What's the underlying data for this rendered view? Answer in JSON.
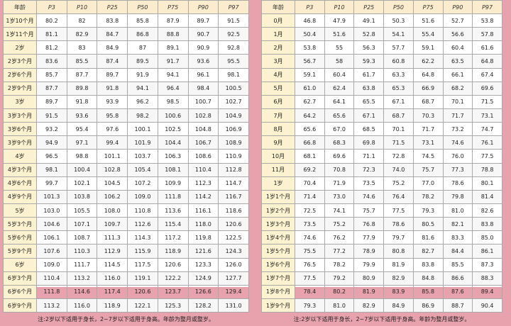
{
  "left_table": {
    "headers": [
      "年龄",
      "P3",
      "P10",
      "P25",
      "P50",
      "P75",
      "P90",
      "P97"
    ],
    "rows": [
      [
        "1岁10个月",
        "80.2",
        "82",
        "83.8",
        "85.8",
        "87.9",
        "89.7",
        "91.5"
      ],
      [
        "1岁11个月",
        "81.1",
        "82.9",
        "84.7",
        "86.8",
        "88.8",
        "90.7",
        "92.5"
      ],
      [
        "2岁",
        "81.2",
        "83",
        "84.9",
        "87",
        "89.1",
        "90.9",
        "92.8"
      ],
      [
        "2岁3个月",
        "83.6",
        "85.5",
        "87.4",
        "89.5",
        "91.7",
        "93.6",
        "95.5"
      ],
      [
        "2岁6个月",
        "85.7",
        "87.7",
        "89.7",
        "91.9",
        "94.1",
        "96.1",
        "98.1"
      ],
      [
        "2岁9个月",
        "87.7",
        "89.8",
        "91.8",
        "94.1",
        "96.4",
        "98.4",
        "100.5"
      ],
      [
        "3岁",
        "89.7",
        "91.8",
        "93.9",
        "96.2",
        "98.5",
        "100.7",
        "102.7"
      ],
      [
        "3岁3个月",
        "91.5",
        "93.6",
        "95.8",
        "98.2",
        "100.6",
        "102.8",
        "104.9"
      ],
      [
        "3岁6个月",
        "93.2",
        "95.4",
        "97.6",
        "100.1",
        "102.5",
        "104.8",
        "106.9"
      ],
      [
        "3岁9个月",
        "94.9",
        "97.1",
        "99.4",
        "101.9",
        "104.4",
        "106.7",
        "108.9"
      ],
      [
        "4岁",
        "96.5",
        "98.8",
        "101.1",
        "103.7",
        "106.3",
        "108.6",
        "110.9"
      ],
      [
        "4岁3个月",
        "98.1",
        "100.4",
        "102.8",
        "105.4",
        "108.1",
        "110.4",
        "112.8"
      ],
      [
        "4岁6个月",
        "99.7",
        "102.1",
        "104.5",
        "107.2",
        "109.9",
        "112.3",
        "114.7"
      ],
      [
        "4岁9个月",
        "101.3",
        "103.8",
        "106.2",
        "109.0",
        "111.8",
        "114.2",
        "116.7"
      ],
      [
        "5岁",
        "103.0",
        "105.5",
        "108.0",
        "110.8",
        "113.6",
        "116.1",
        "118.6"
      ],
      [
        "5岁3个月",
        "104.6",
        "107.1",
        "109.7",
        "112.6",
        "115.4",
        "118.0",
        "120.6"
      ],
      [
        "5岁6个月",
        "106.1",
        "108.7",
        "111.3",
        "114.3",
        "117.2",
        "119.8",
        "122.5"
      ],
      [
        "5岁9个月",
        "107.6",
        "110.3",
        "112.9",
        "115.9",
        "118.9",
        "121.6",
        "124.3"
      ],
      [
        "6岁",
        "109.0",
        "111.7",
        "114.5",
        "117.5",
        "120.6",
        "123.3",
        "126.0"
      ],
      [
        "6岁3个月",
        "110.4",
        "113.2",
        "116.0",
        "119.1",
        "122.2",
        "124.9",
        "127.7"
      ],
      [
        "6岁6个月",
        "111.8",
        "114.6",
        "117.4",
        "120.6",
        "123.7",
        "126.6",
        "129.4"
      ],
      [
        "6岁9个月",
        "113.2",
        "116.0",
        "118.9",
        "122.1",
        "125.3",
        "128.2",
        "131.0"
      ]
    ],
    "note": "注:2岁以下适用于身长，2~7岁以下适用于身高。年龄为整月或整岁。"
  },
  "right_table": {
    "headers": [
      "年龄",
      "P3",
      "P10",
      "P25",
      "P50",
      "P75",
      "P90",
      "P97"
    ],
    "rows": [
      [
        "0月",
        "46.8",
        "47.9",
        "49.1",
        "50.3",
        "51.6",
        "52.7",
        "53.8"
      ],
      [
        "1月",
        "50.4",
        "51.6",
        "52.8",
        "54.1",
        "55.4",
        "56.6",
        "57.8"
      ],
      [
        "2月",
        "53.8",
        "55",
        "56.3",
        "57.7",
        "59.1",
        "60.4",
        "61.6"
      ],
      [
        "3月",
        "56.7",
        "58",
        "59.3",
        "60.8",
        "62.2",
        "63.5",
        "64.8"
      ],
      [
        "4月",
        "59.1",
        "60.4",
        "61.7",
        "63.3",
        "64.8",
        "66.1",
        "67.4"
      ],
      [
        "5月",
        "61.0",
        "62.4",
        "63.8",
        "65.3",
        "66.9",
        "68.2",
        "69.6"
      ],
      [
        "6月",
        "62.7",
        "64.1",
        "65.5",
        "67.1",
        "68.7",
        "70.1",
        "71.5"
      ],
      [
        "7月",
        "64.2",
        "65.6",
        "67.1",
        "68.7",
        "70.3",
        "71.7",
        "73.1"
      ],
      [
        "8月",
        "65.6",
        "67.0",
        "68.5",
        "70.1",
        "71.7",
        "73.2",
        "74.7"
      ],
      [
        "9月",
        "66.8",
        "68.3",
        "69.8",
        "71.5",
        "73.1",
        "74.6",
        "76.1"
      ],
      [
        "10月",
        "68.1",
        "69.6",
        "71.1",
        "72.8",
        "74.5",
        "76.0",
        "77.5"
      ],
      [
        "11月",
        "69.2",
        "70.8",
        "72.3",
        "74.0",
        "75.7",
        "77.3",
        "78.8"
      ],
      [
        "1岁",
        "70.4",
        "71.9",
        "73.5",
        "75.2",
        "77.0",
        "78.6",
        "80.1"
      ],
      [
        "1岁1个月",
        "71.4",
        "73.0",
        "74.6",
        "76.4",
        "78.2",
        "79.8",
        "81.4"
      ],
      [
        "1岁2个月",
        "72.5",
        "74.1",
        "75.7",
        "77.5",
        "79.3",
        "81.0",
        "82.6"
      ],
      [
        "1岁3个月",
        "73.5",
        "75.2",
        "76.8",
        "78.6",
        "80.5",
        "82.1",
        "83.8"
      ],
      [
        "1岁4个月",
        "74.6",
        "76.2",
        "77.9",
        "79.7",
        "81.6",
        "83.3",
        "85.0"
      ],
      [
        "1岁5个月",
        "75.5",
        "77.2",
        "78.9",
        "80.8",
        "82.7",
        "84.4",
        "86.1"
      ],
      [
        "1岁6个月",
        "76.5",
        "78.2",
        "79.9",
        "81.9",
        "83.8",
        "85.5",
        "87.3"
      ],
      [
        "1岁7个月",
        "77.5",
        "79.2",
        "80.9",
        "82.9",
        "84.8",
        "86.6",
        "88.3"
      ],
      [
        "1岁8个月",
        "78.4",
        "80.2",
        "81.9",
        "83.9",
        "85.8",
        "87.6",
        "89.4"
      ],
      [
        "1岁9个月",
        "79.3",
        "81.0",
        "82.9",
        "84.9",
        "86.9",
        "88.7",
        "90.4"
      ]
    ],
    "note": "注:2岁以下适用于身长，2~7岁以下适用于身高。年龄为整月或整岁。"
  }
}
